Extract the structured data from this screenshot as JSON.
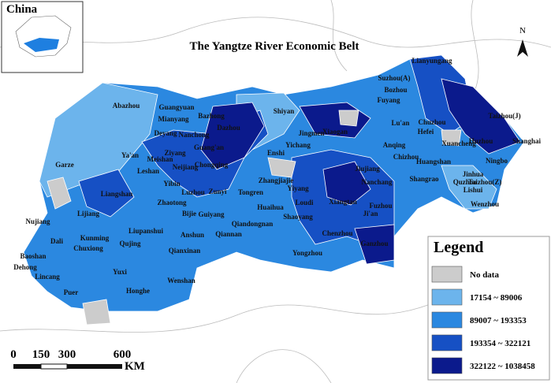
{
  "title": "The Yangtze River Economic Belt",
  "inset": {
    "label": "China"
  },
  "north": "N",
  "scale": {
    "labels": [
      "0",
      "150",
      "300",
      "600"
    ],
    "unit": "KM"
  },
  "legend": {
    "title": "Legend",
    "items": [
      {
        "label": "No data",
        "color": "#cccccc"
      },
      {
        "label": "17154 ~ 89006",
        "color": "#6cb4ec"
      },
      {
        "label": "89007 ~ 193353",
        "color": "#2b88e0"
      },
      {
        "label": "193354 ~ 322121",
        "color": "#1650c4"
      },
      {
        "label": "322122 ~ 1038458",
        "color": "#0b1a8c"
      }
    ]
  },
  "cities": [
    "Abazhou",
    "Garze",
    "Ya'an",
    "Meishan",
    "Leshan",
    "Yibin",
    "Liangshan",
    "Zhaotong",
    "Lijiang",
    "Nujiang",
    "Dali",
    "Kunming",
    "Chuxiong",
    "Baoshan",
    "Dehong",
    "Lincang",
    "Puer",
    "Yuxi",
    "Honghe",
    "Wenshan",
    "Qujing",
    "Liupanshui",
    "Bijie",
    "Guiyang",
    "Anshun",
    "Qiannan",
    "Qianxinan",
    "Luzhou",
    "Zunyi",
    "Tongren",
    "Qiandongnan",
    "Huaihua",
    "Shaoyang",
    "Yongzhou",
    "Chenzhou",
    "Ji'an",
    "Fuzhou",
    "Loudi",
    "Yiyang",
    "Zhangjiajie",
    "Enshi",
    "Yichang",
    "Jingmen",
    "Shiyan",
    "Xiaogan",
    "Guangyuan",
    "Mianyang",
    "Bazhong",
    "Dazhou",
    "Nanchong",
    "Deyang",
    "Ziyang",
    "Guang'an",
    "Chongqing",
    "Neijiang",
    "Lu'an",
    "Hefei",
    "Chuzhou",
    "Anqing",
    "Chizhou",
    "Jiujiang",
    "Nanchang",
    "Shangrao",
    "Huangshan",
    "Jinhua",
    "Quzhou",
    "Lishui",
    "Wenzhou",
    "Taizhou(Z)",
    "Ningbo",
    "Huzhou",
    "Shanghai",
    "Suzhou(A)",
    "Bozhou",
    "Fuyang",
    "Lianyungang",
    "Taizhou(J)",
    "Xuancheng",
    "Ganzhou",
    "Xiangtan"
  ]
}
